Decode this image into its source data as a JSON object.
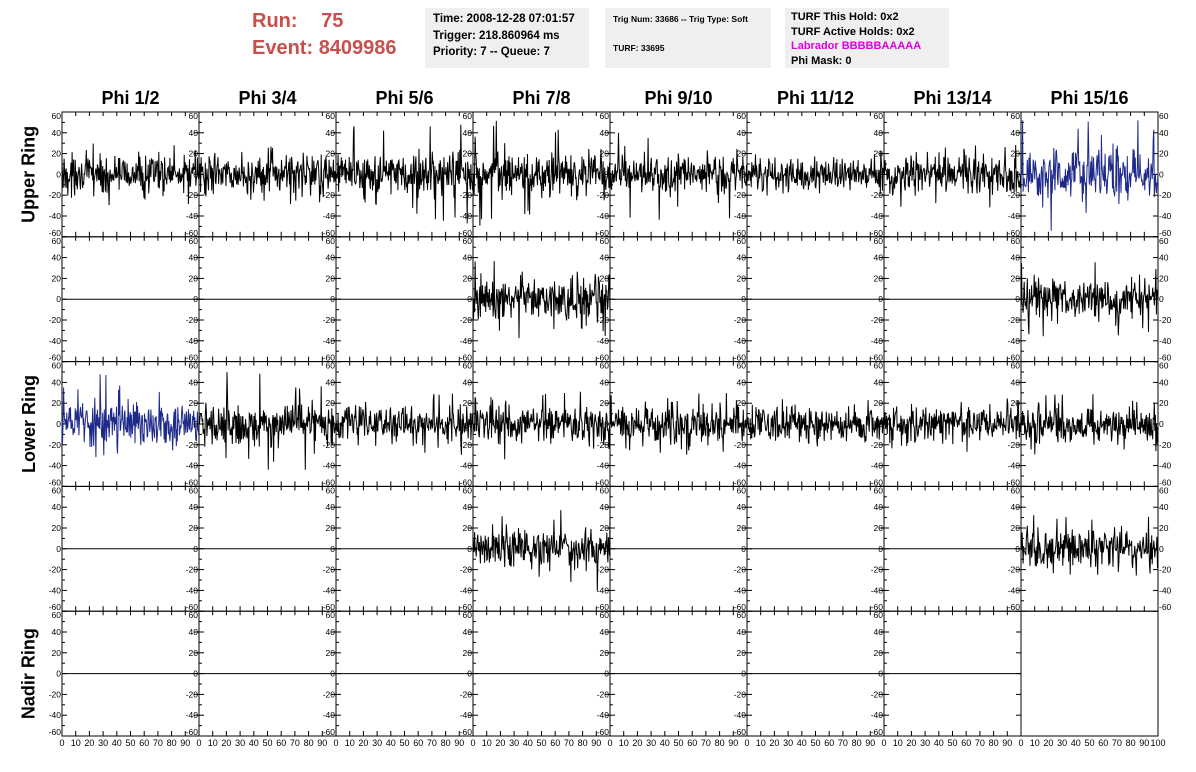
{
  "header": {
    "run_label": "Run:",
    "run_value": "75",
    "event_label": "Event:",
    "event_value": "8409986"
  },
  "trigger_box": {
    "time": "Time: 2008-12-28 07:01:57",
    "trigger": "Trigger: 218.860964 ms",
    "priority": "Priority: 7 -- Queue: 7"
  },
  "trig_box": {
    "trig_line": "Trig Num: 33686 -- Trig Type: Soft",
    "turf_line": "TURF: 33695"
  },
  "turf_box": {
    "this_hold": "TURF This Hold: 0x2",
    "active_holds": "TURF Active Holds: 0x2",
    "labrador": "Labrador BBBBBAAAAA",
    "phi_mask": "Phi Mask: 0",
    "labrador_color": "#e000e0"
  },
  "colors": {
    "title": "#c8504c",
    "trace_default": "#000000",
    "trace_highlight": "#1e2a8a",
    "box_background": "#efefef"
  },
  "chart_data": {
    "type": "line",
    "columns": [
      "Phi 1/2",
      "Phi 3/4",
      "Phi 5/6",
      "Phi 7/8",
      "Phi 9/10",
      "Phi 11/12",
      "Phi 13/14",
      "Phi 15/16"
    ],
    "rows": [
      "Upper Ring",
      "",
      "Lower Ring",
      "",
      "Nadir Ring"
    ],
    "row_labels": [
      {
        "text": "Upper Ring"
      },
      {
        "text": "Lower Ring"
      },
      {
        "text": "Nadir Ring"
      }
    ],
    "xlim": [
      0,
      100
    ],
    "ylim": [
      -60,
      60
    ],
    "x_ticks": [
      0,
      10,
      20,
      30,
      40,
      50,
      60,
      70,
      80,
      90
    ],
    "x_ticks_last_panel": [
      0,
      10,
      20,
      30,
      40,
      50,
      60,
      70,
      80,
      90,
      100
    ],
    "y_ticks": [
      60,
      40,
      20,
      0,
      -20,
      -40,
      -60
    ],
    "samples_per_trace": 260,
    "panels": [
      [
        {
          "kind": "noise",
          "amp": 12,
          "spikes": 30,
          "color": "default"
        },
        {
          "kind": "noise",
          "amp": 12,
          "spikes": 32,
          "color": "default"
        },
        {
          "kind": "noise",
          "amp": 13,
          "spikes": 48,
          "color": "default"
        },
        {
          "kind": "noise",
          "amp": 14,
          "spikes": 55,
          "color": "default"
        },
        {
          "kind": "noise",
          "amp": 12,
          "spikes": 44,
          "color": "default"
        },
        {
          "kind": "noise",
          "amp": 10,
          "spikes": 25,
          "color": "default"
        },
        {
          "kind": "noise",
          "amp": 11,
          "spikes": 32,
          "color": "default"
        },
        {
          "kind": "noise",
          "amp": 15,
          "spikes": 55,
          "color": "highlight"
        }
      ],
      [
        {
          "kind": "flat"
        },
        {
          "kind": "flat"
        },
        {
          "kind": "flat"
        },
        {
          "kind": "noise",
          "amp": 13,
          "spikes": 38,
          "color": "default"
        },
        {
          "kind": "flat"
        },
        {
          "kind": "flat"
        },
        {
          "kind": "flat"
        },
        {
          "kind": "noise",
          "amp": 12,
          "spikes": 38,
          "color": "default"
        }
      ],
      [
        {
          "kind": "noise",
          "amp": 13,
          "spikes": 48,
          "color": "highlight"
        },
        {
          "kind": "noise",
          "amp": 13,
          "spikes": 50,
          "color": "default"
        },
        {
          "kind": "noise",
          "amp": 11,
          "spikes": 30,
          "color": "default"
        },
        {
          "kind": "noise",
          "amp": 12,
          "spikes": 34,
          "color": "default"
        },
        {
          "kind": "noise",
          "amp": 12,
          "spikes": 30,
          "color": "default"
        },
        {
          "kind": "noise",
          "amp": 10,
          "spikes": 24,
          "color": "default"
        },
        {
          "kind": "noise",
          "amp": 11,
          "spikes": 30,
          "color": "default"
        },
        {
          "kind": "noise",
          "amp": 11,
          "spikes": 30,
          "color": "default"
        }
      ],
      [
        {
          "kind": "flat"
        },
        {
          "kind": "flat"
        },
        {
          "kind": "flat"
        },
        {
          "kind": "noise",
          "amp": 13,
          "spikes": 44,
          "color": "default"
        },
        {
          "kind": "flat"
        },
        {
          "kind": "flat"
        },
        {
          "kind": "flat"
        },
        {
          "kind": "noise",
          "amp": 12,
          "spikes": 40,
          "color": "default"
        }
      ],
      [
        {
          "kind": "flat"
        },
        {
          "kind": "flat"
        },
        {
          "kind": "flat"
        },
        {
          "kind": "flat"
        },
        {
          "kind": "flat"
        },
        {
          "kind": "flat"
        },
        {
          "kind": "flat"
        },
        {
          "kind": "empty"
        }
      ]
    ]
  }
}
